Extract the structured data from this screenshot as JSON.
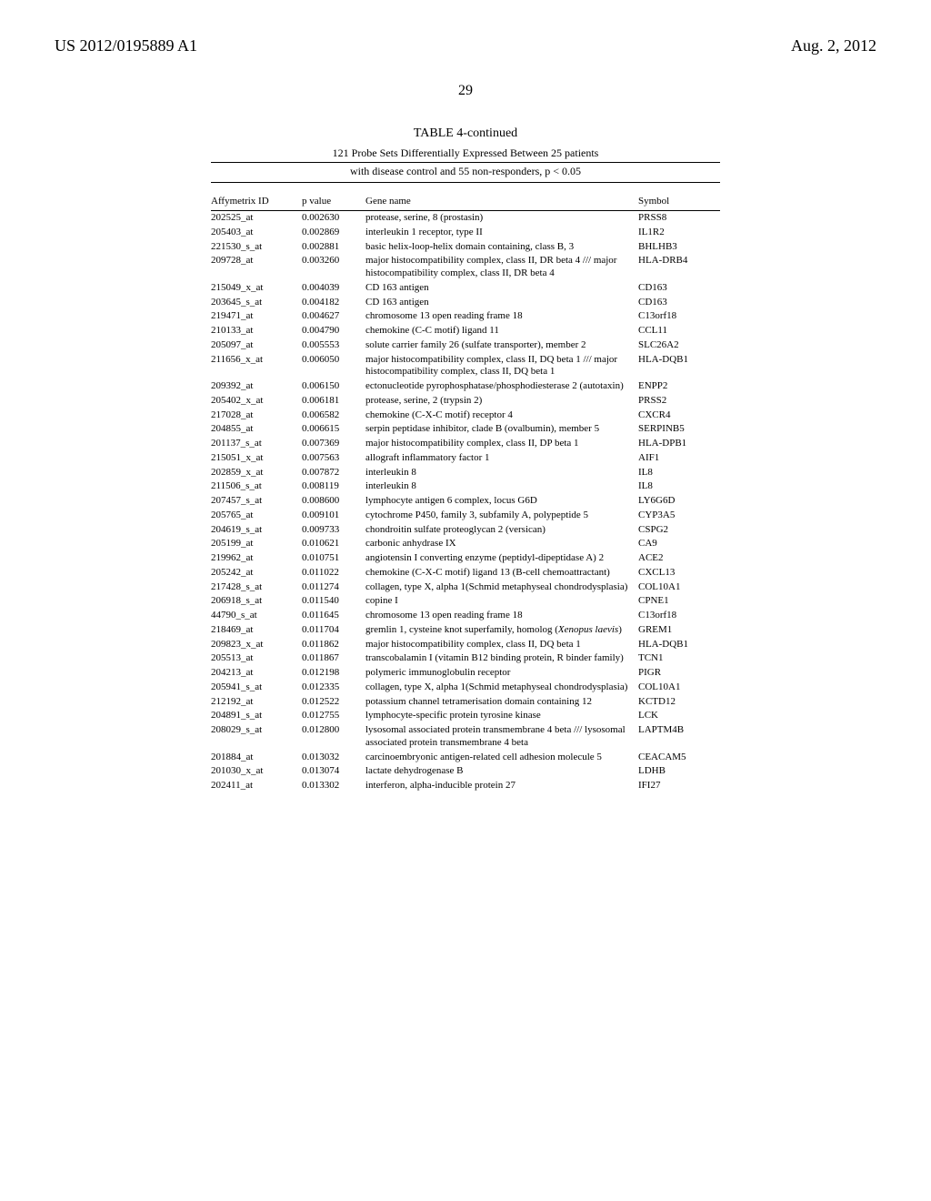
{
  "header": {
    "doc_id": "US 2012/0195889 A1",
    "date": "Aug. 2, 2012"
  },
  "page_number": "29",
  "table": {
    "title": "TABLE 4-continued",
    "subtitle_line1": "121 Probe Sets Differentially Expressed Between 25 patients",
    "subtitle_line2": "with disease control and 55 non-responders, p < 0.05",
    "columns": {
      "c1": "Affymetrix ID",
      "c2": "p value",
      "c3": "Gene name",
      "c4": "Symbol"
    },
    "rows": [
      {
        "id": "202525_at",
        "p": "0.002630",
        "gene": "protease, serine, 8 (prostasin)",
        "sym": "PRSS8"
      },
      {
        "id": "205403_at",
        "p": "0.002869",
        "gene": "interleukin 1 receptor, type II",
        "sym": "IL1R2"
      },
      {
        "id": "221530_s_at",
        "p": "0.002881",
        "gene": "basic helix-loop-helix domain containing, class B, 3",
        "sym": "BHLHB3"
      },
      {
        "id": "209728_at",
        "p": "0.003260",
        "gene": "major histocompatibility complex, class II, DR beta 4 /// major histocompatibility complex, class II, DR beta 4",
        "sym": "HLA-DRB4"
      },
      {
        "id": "215049_x_at",
        "p": "0.004039",
        "gene": "CD 163 antigen",
        "sym": "CD163"
      },
      {
        "id": "203645_s_at",
        "p": "0.004182",
        "gene": "CD 163 antigen",
        "sym": "CD163"
      },
      {
        "id": "219471_at",
        "p": "0.004627",
        "gene": "chromosome 13 open reading frame 18",
        "sym": "C13orf18"
      },
      {
        "id": "210133_at",
        "p": "0.004790",
        "gene": "chemokine (C-C motif) ligand 11",
        "sym": "CCL11"
      },
      {
        "id": "205097_at",
        "p": "0.005553",
        "gene": "solute carrier family 26 (sulfate transporter), member 2",
        "sym": "SLC26A2"
      },
      {
        "id": "211656_x_at",
        "p": "0.006050",
        "gene": "major histocompatibility complex, class II, DQ beta 1 /// major histocompatibility complex, class II, DQ beta 1",
        "sym": "HLA-DQB1"
      },
      {
        "id": "209392_at",
        "p": "0.006150",
        "gene": "ectonucleotide pyrophosphatase/phosphodiesterase 2 (autotaxin)",
        "sym": "ENPP2"
      },
      {
        "id": "205402_x_at",
        "p": "0.006181",
        "gene": "protease, serine, 2 (trypsin 2)",
        "sym": "PRSS2"
      },
      {
        "id": "217028_at",
        "p": "0.006582",
        "gene": "chemokine (C-X-C motif) receptor 4",
        "sym": "CXCR4"
      },
      {
        "id": "204855_at",
        "p": "0.006615",
        "gene": "serpin peptidase inhibitor, clade B (ovalbumin), member 5",
        "sym": "SERPINB5"
      },
      {
        "id": "201137_s_at",
        "p": "0.007369",
        "gene": "major histocompatibility complex, class II, DP beta 1",
        "sym": "HLA-DPB1"
      },
      {
        "id": "215051_x_at",
        "p": "0.007563",
        "gene": "allograft inflammatory factor 1",
        "sym": "AIF1"
      },
      {
        "id": "202859_x_at",
        "p": "0.007872",
        "gene": "interleukin 8",
        "sym": "IL8"
      },
      {
        "id": "211506_s_at",
        "p": "0.008119",
        "gene": "interleukin 8",
        "sym": "IL8"
      },
      {
        "id": "207457_s_at",
        "p": "0.008600",
        "gene": "lymphocyte antigen 6 complex, locus G6D",
        "sym": "LY6G6D"
      },
      {
        "id": "205765_at",
        "p": "0.009101",
        "gene": "cytochrome P450, family 3, subfamily A, polypeptide 5",
        "sym": "CYP3A5"
      },
      {
        "id": "204619_s_at",
        "p": "0.009733",
        "gene": "chondroitin sulfate proteoglycan 2 (versican)",
        "sym": "CSPG2"
      },
      {
        "id": "205199_at",
        "p": "0.010621",
        "gene": "carbonic anhydrase IX",
        "sym": "CA9"
      },
      {
        "id": "219962_at",
        "p": "0.010751",
        "gene": "angiotensin I converting enzyme (peptidyl-dipeptidase A) 2",
        "sym": "ACE2"
      },
      {
        "id": "205242_at",
        "p": "0.011022",
        "gene": "chemokine (C-X-C motif) ligand 13 (B-cell chemoattractant)",
        "sym": "CXCL13"
      },
      {
        "id": "217428_s_at",
        "p": "0.011274",
        "gene": "collagen, type X, alpha 1(Schmid metaphyseal chondrodysplasia)",
        "sym": "COL10A1"
      },
      {
        "id": "206918_s_at",
        "p": "0.011540",
        "gene": "copine I",
        "sym": "CPNE1"
      },
      {
        "id": "44790_s_at",
        "p": "0.011645",
        "gene": "chromosome 13 open reading frame 18",
        "sym": "C13orf18"
      },
      {
        "id": "218469_at",
        "p": "0.011704",
        "gene": "gremlin 1, cysteine knot superfamily, homolog (<em>Xenopus laevis</em>)",
        "sym": "GREM1"
      },
      {
        "id": "209823_x_at",
        "p": "0.011862",
        "gene": "major histocompatibility complex, class II, DQ beta 1",
        "sym": "HLA-DQB1"
      },
      {
        "id": "205513_at",
        "p": "0.011867",
        "gene": "transcobalamin I (vitamin B12 binding protein, R binder family)",
        "sym": "TCN1"
      },
      {
        "id": "204213_at",
        "p": "0.012198",
        "gene": "polymeric immunoglobulin receptor",
        "sym": "PIGR"
      },
      {
        "id": "205941_s_at",
        "p": "0.012335",
        "gene": "collagen, type X, alpha 1(Schmid metaphyseal chondrodysplasia)",
        "sym": "COL10A1"
      },
      {
        "id": "212192_at",
        "p": "0.012522",
        "gene": "potassium channel tetramerisation domain containing 12",
        "sym": "KCTD12"
      },
      {
        "id": "204891_s_at",
        "p": "0.012755",
        "gene": "lymphocyte-specific protein tyrosine kinase",
        "sym": "LCK"
      },
      {
        "id": "208029_s_at",
        "p": "0.012800",
        "gene": "lysosomal associated protein transmembrane 4 beta /// lysosomal associated protein transmembrane 4 beta",
        "sym": "LAPTM4B"
      },
      {
        "id": "201884_at",
        "p": "0.013032",
        "gene": "carcinoembryonic antigen-related cell adhesion molecule 5",
        "sym": "CEACAM5"
      },
      {
        "id": "201030_x_at",
        "p": "0.013074",
        "gene": "lactate dehydrogenase B",
        "sym": "LDHB"
      },
      {
        "id": "202411_at",
        "p": "0.013302",
        "gene": "interferon, alpha-inducible protein 27",
        "sym": "IFI27"
      }
    ]
  }
}
